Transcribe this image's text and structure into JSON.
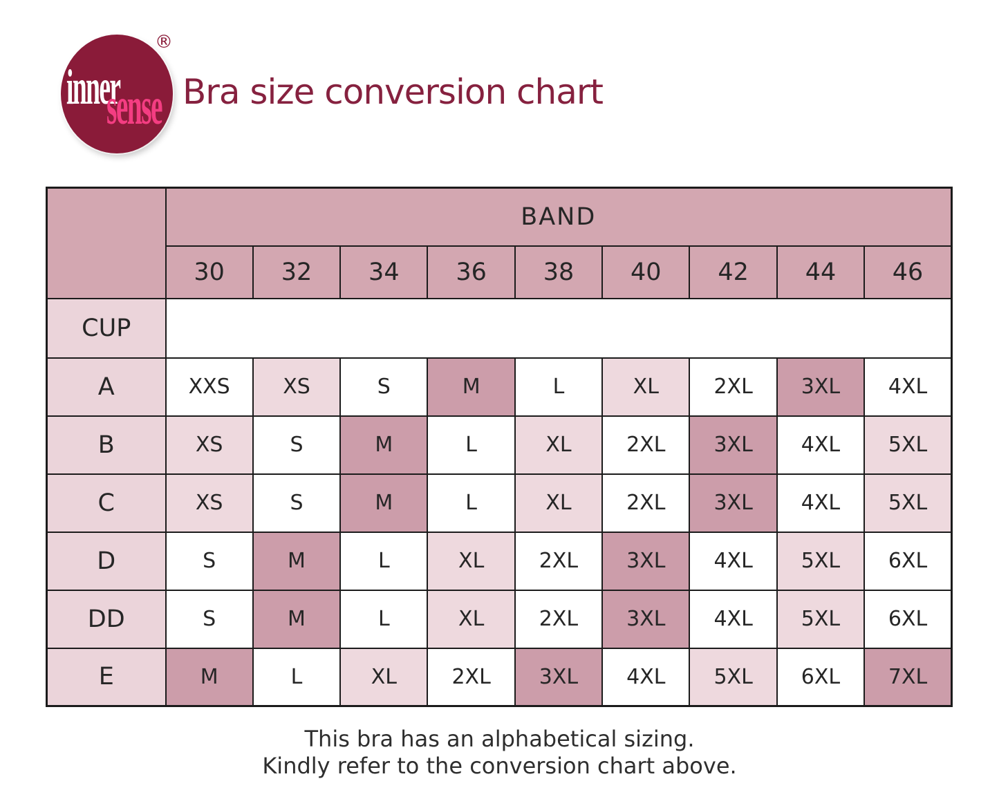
{
  "logo": {
    "word1": "inner",
    "word2": "sense",
    "registered_mark": "®",
    "circle_color": "#8a1b39",
    "word1_color": "#ffffff",
    "word2_color": "#f43d82"
  },
  "header": {
    "title": "Bra size conversion chart",
    "title_color": "#86213f"
  },
  "chart_data": {
    "type": "table",
    "title": "Bra size conversion chart",
    "column_group_label": "BAND",
    "row_group_label": "CUP",
    "columns": [
      "30",
      "32",
      "34",
      "36",
      "38",
      "40",
      "42",
      "44",
      "46"
    ],
    "rows": [
      {
        "cup": "A",
        "sizes": [
          "XXS",
          "XS",
          "S",
          "M",
          "L",
          "XL",
          "2XL",
          "3XL",
          "4XL"
        ],
        "shades": [
          "white",
          "light",
          "white",
          "dark",
          "white",
          "light",
          "white",
          "dark",
          "white"
        ]
      },
      {
        "cup": "B",
        "sizes": [
          "XS",
          "S",
          "M",
          "L",
          "XL",
          "2XL",
          "3XL",
          "4XL",
          "5XL"
        ],
        "shades": [
          "light",
          "white",
          "dark",
          "white",
          "light",
          "white",
          "dark",
          "white",
          "light"
        ]
      },
      {
        "cup": "C",
        "sizes": [
          "XS",
          "S",
          "M",
          "L",
          "XL",
          "2XL",
          "3XL",
          "4XL",
          "5XL"
        ],
        "shades": [
          "light",
          "white",
          "dark",
          "white",
          "light",
          "white",
          "dark",
          "white",
          "light"
        ]
      },
      {
        "cup": "D",
        "sizes": [
          "S",
          "M",
          "L",
          "XL",
          "2XL",
          "3XL",
          "4XL",
          "5XL",
          "6XL"
        ],
        "shades": [
          "white",
          "dark",
          "white",
          "light",
          "white",
          "dark",
          "white",
          "light",
          "white"
        ]
      },
      {
        "cup": "DD",
        "sizes": [
          "S",
          "M",
          "L",
          "XL",
          "2XL",
          "3XL",
          "4XL",
          "5XL",
          "6XL"
        ],
        "shades": [
          "white",
          "dark",
          "white",
          "light",
          "white",
          "dark",
          "white",
          "light",
          "white"
        ]
      },
      {
        "cup": "E",
        "sizes": [
          "M",
          "L",
          "XL",
          "2XL",
          "3XL",
          "4XL",
          "5XL",
          "6XL",
          "7XL"
        ],
        "shades": [
          "dark",
          "white",
          "light",
          "white",
          "dark",
          "white",
          "light",
          "white",
          "dark"
        ]
      }
    ],
    "colors": {
      "band_header_bg": "#d3a7b1",
      "cup_label_bg": "#ebd4da",
      "cell_white": "#ffffff",
      "cell_light": "#eed9de",
      "cell_dark": "#cc9daa",
      "border": "#1b1b1b"
    }
  },
  "footer": {
    "line1": "This bra has an alphabetical sizing.",
    "line2": "Kindly refer to the conversion chart above."
  }
}
